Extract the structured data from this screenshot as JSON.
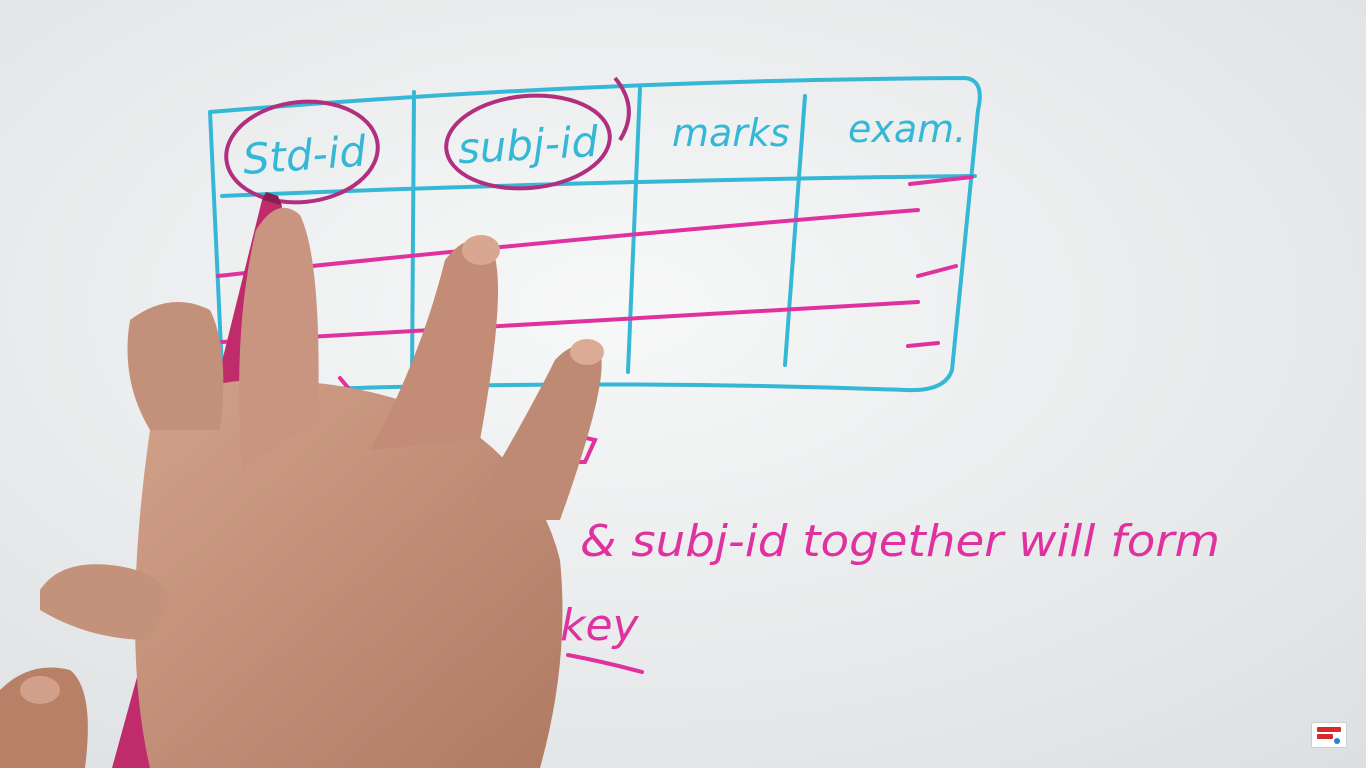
{
  "colors": {
    "board": "#edeff0",
    "table_ink": "#35b7d6",
    "highlight_ink": "#e0329f",
    "circle_ink": "#b0307f",
    "skin": "#c49079"
  },
  "table": {
    "headers": [
      "Std-id",
      "subj-id",
      "marks",
      "exam."
    ]
  },
  "notes": {
    "phrase": "& subj-id together will form",
    "key_word": "key"
  },
  "icons": {
    "channel_logo": "channel-logo-icon"
  }
}
